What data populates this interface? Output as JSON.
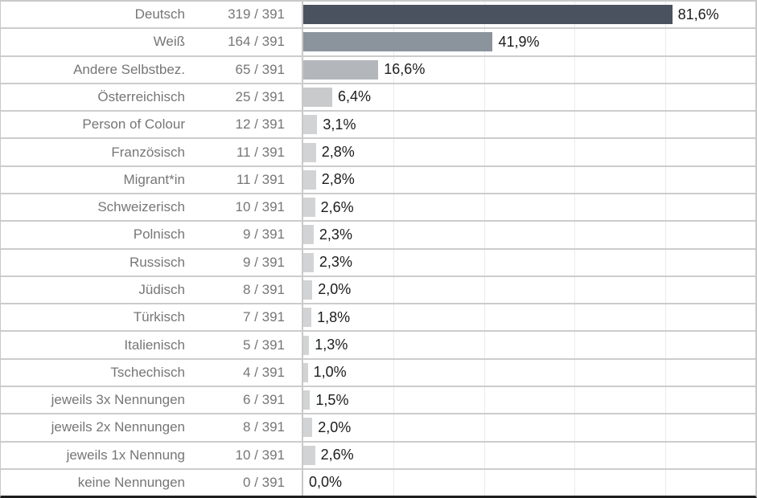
{
  "chart_data": {
    "type": "bar",
    "orientation": "horizontal",
    "title": "",
    "xlabel": "",
    "ylabel": "",
    "xlim": [
      0,
      100
    ],
    "grid": true,
    "gridlines_pct": [
      20,
      40,
      60,
      80
    ],
    "denominator": 391,
    "categories": [
      "Deutsch",
      "Weiß",
      "Andere Selbstbez.",
      "Österreichisch",
      "Person of Colour",
      "Französisch",
      "Migrant*in",
      "Schweizerisch",
      "Polnisch",
      "Russisch",
      "Jüdisch",
      "Türkisch",
      "Italienisch",
      "Tschechisch",
      "jeweils 3x Nennungen",
      "jeweils 2x Nennungen",
      "jeweils 1x Nennung",
      "keine Nennungen"
    ],
    "counts": [
      319,
      164,
      65,
      25,
      12,
      11,
      11,
      10,
      9,
      9,
      8,
      7,
      5,
      4,
      6,
      8,
      10,
      0
    ],
    "count_labels": [
      "319 / 391",
      "164 / 391",
      "65 / 391",
      "25 / 391",
      "12 / 391",
      "11 / 391",
      "11 / 391",
      "10 / 391",
      "9 / 391",
      "9 / 391",
      "8 / 391",
      "7 / 391",
      "5 / 391",
      "4 / 391",
      "6 / 391",
      "8 / 391",
      "10 / 391",
      "0 / 391"
    ],
    "values": [
      81.6,
      41.9,
      16.6,
      6.4,
      3.1,
      2.8,
      2.8,
      2.6,
      2.3,
      2.3,
      2.0,
      1.8,
      1.3,
      1.0,
      1.5,
      2.0,
      2.6,
      0.0
    ],
    "value_labels": [
      "81,6%",
      "41,9%",
      "16,6%",
      "6,4%",
      "3,1%",
      "2,8%",
      "2,8%",
      "2,6%",
      "2,3%",
      "2,3%",
      "2,0%",
      "1,8%",
      "1,3%",
      "1,0%",
      "1,5%",
      "2,0%",
      "2,6%",
      "0,0%"
    ],
    "bar_colors": [
      "#4a5260",
      "#8b939d",
      "#b3b7bb",
      "#c8cacc",
      "#d2d3d4",
      "#d2d3d4",
      "#d2d3d4",
      "#d2d3d4",
      "#d2d3d4",
      "#d2d3d4",
      "#d2d3d4",
      "#d2d3d4",
      "#d2d3d4",
      "#d2d3d4",
      "#d2d3d4",
      "#d2d3d4",
      "#d2d3d4",
      "#d2d3d4"
    ]
  },
  "colors": {
    "background": "#ffffff",
    "row_divider": "#cccccc",
    "column_divider": "#c9c9c9",
    "gridline": "#ebebeb",
    "category_text": "#767676",
    "count_text": "#767676",
    "value_text": "#1c1c1c",
    "bottom_border": "#1e1e1e"
  }
}
